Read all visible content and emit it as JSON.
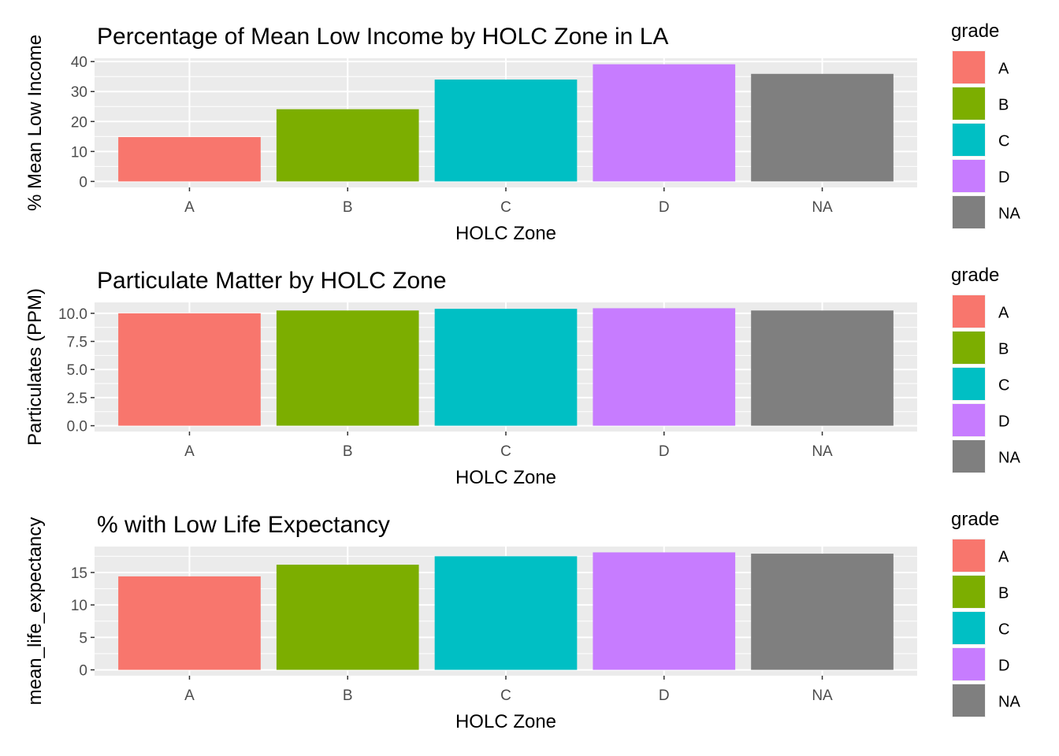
{
  "colors": {
    "A": "#F8766D",
    "B": "#7CAE00",
    "C": "#00BFC4",
    "D": "#C77CFF",
    "NA": "#7F7F7F",
    "panel_bg": "#EBEBEB",
    "grid": "#FFFFFF",
    "axis_text": "#4D4D4D",
    "title_text": "#000000"
  },
  "chart_data": [
    {
      "type": "bar",
      "title": "Percentage of Mean Low Income by HOLC Zone in LA",
      "xlabel": "HOLC Zone",
      "ylabel": "% Mean Low Income",
      "categories": [
        "A",
        "B",
        "C",
        "D",
        "NA"
      ],
      "values": [
        14.8,
        24.1,
        34.0,
        39.1,
        35.9
      ],
      "ylim": [
        -2.0,
        41.1
      ],
      "yticks": [
        0,
        10,
        20,
        30,
        40
      ],
      "ytick_labels": [
        "0",
        "10",
        "20",
        "30",
        "40"
      ],
      "grid": true,
      "legend": {
        "title": "grade",
        "position": "right",
        "entries": [
          "A",
          "B",
          "C",
          "D",
          "NA"
        ]
      }
    },
    {
      "type": "bar",
      "title": "Particulate Matter by HOLC Zone",
      "xlabel": "HOLC Zone",
      "ylabel": "Particulates (PPM)",
      "categories": [
        "A",
        "B",
        "C",
        "D",
        "NA"
      ],
      "values": [
        10.0,
        10.25,
        10.4,
        10.45,
        10.25
      ],
      "ylim": [
        -0.52,
        10.97
      ],
      "yticks": [
        0,
        2.5,
        5,
        7.5,
        10
      ],
      "ytick_labels": [
        "0.0",
        "2.5",
        "5.0",
        "7.5",
        "10.0"
      ],
      "grid": true,
      "legend": {
        "title": "grade",
        "position": "right",
        "entries": [
          "A",
          "B",
          "C",
          "D",
          "NA"
        ]
      }
    },
    {
      "type": "bar",
      "title": "% with Low Life Expectancy",
      "xlabel": "HOLC Zone",
      "ylabel": "mean_life_expectancy",
      "categories": [
        "A",
        "B",
        "C",
        "D",
        "NA"
      ],
      "values": [
        14.4,
        16.2,
        17.5,
        18.1,
        17.9
      ],
      "ylim": [
        -0.9,
        19.0
      ],
      "yticks": [
        0,
        5,
        10,
        15
      ],
      "ytick_labels": [
        "0",
        "5",
        "10",
        "15"
      ],
      "grid": true,
      "legend": {
        "title": "grade",
        "position": "right",
        "entries": [
          "A",
          "B",
          "C",
          "D",
          "NA"
        ]
      }
    }
  ]
}
